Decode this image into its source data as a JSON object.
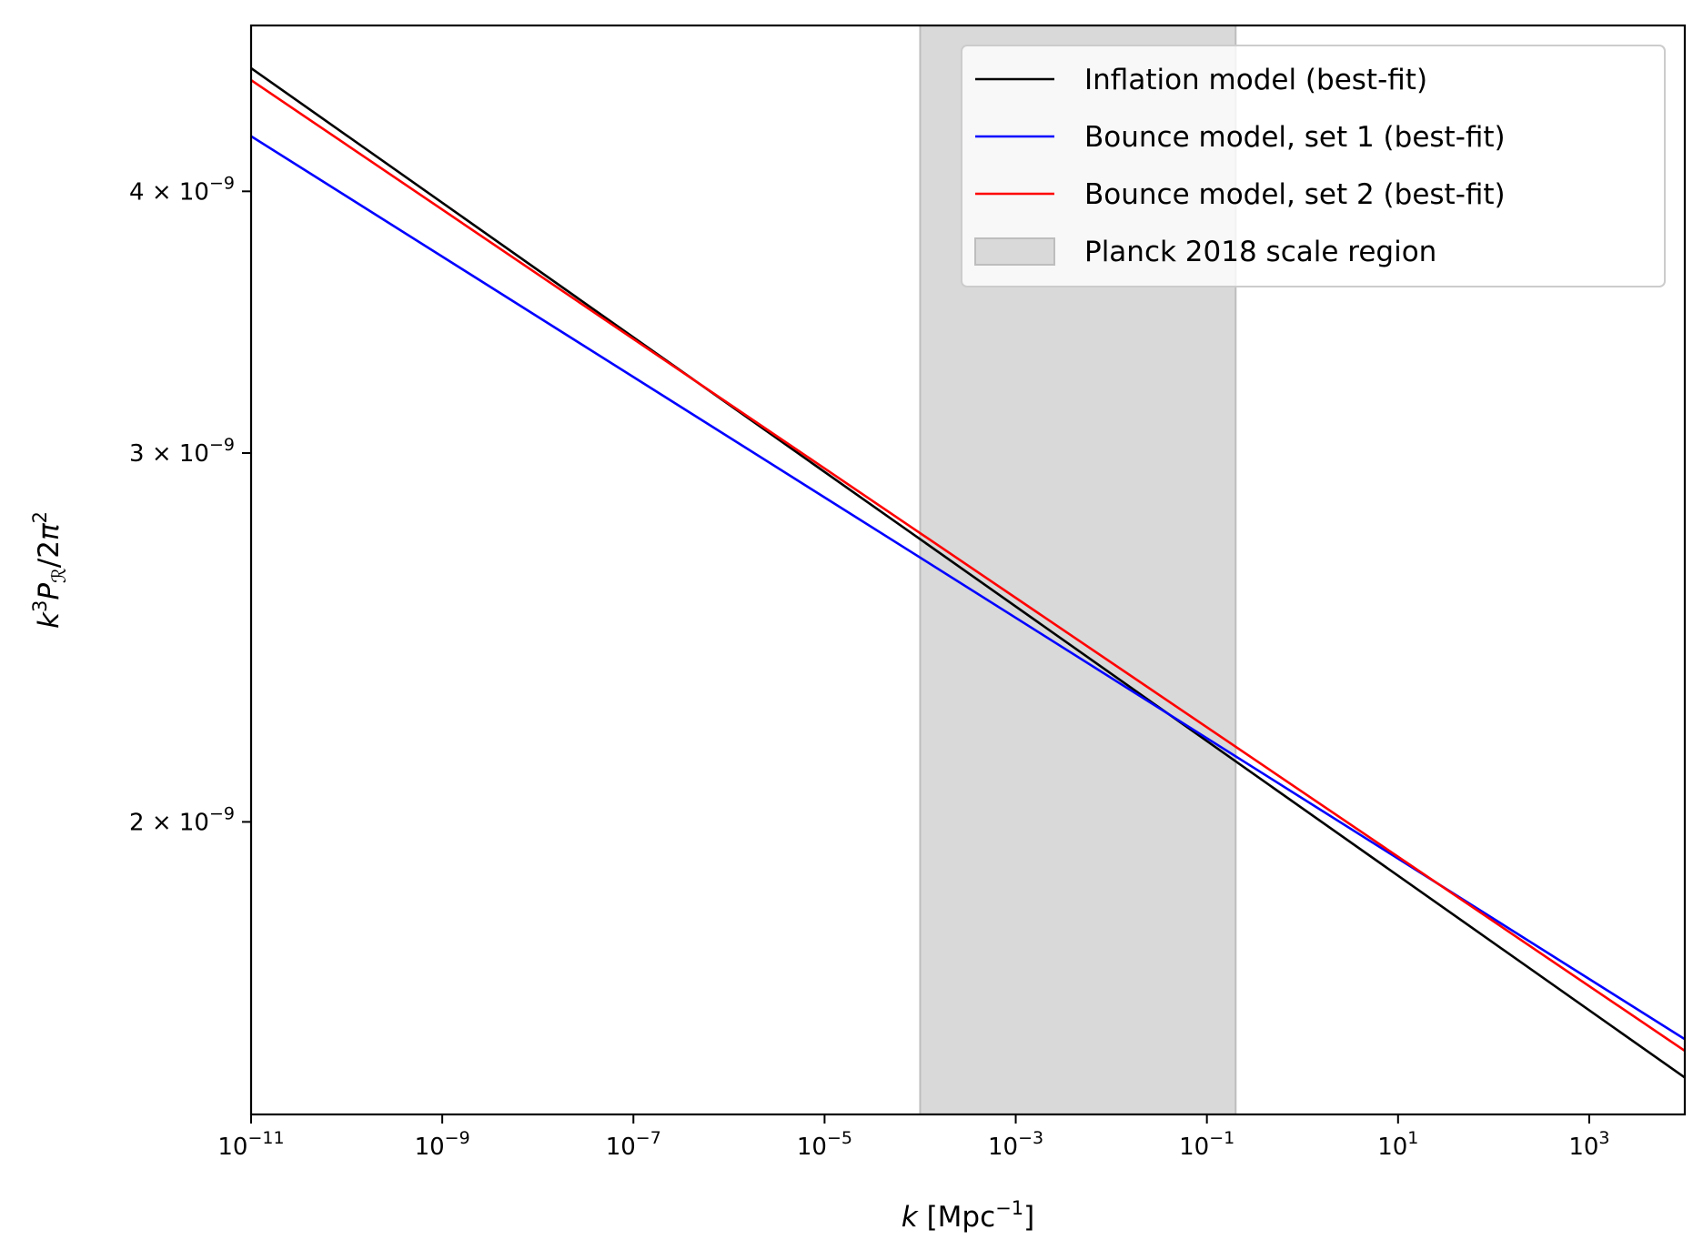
{
  "chart_data": {
    "type": "line",
    "xlabel": "k [Mpc⁻¹]",
    "ylabel": "k³P_R/2π²",
    "x_scale": "log",
    "y_scale": "log",
    "xlim": [
      1e-11,
      10000
    ],
    "ylim": [
      1.45e-09,
      4.8e-09
    ],
    "grid": false,
    "legend_position": "top-right",
    "x_ticks": [
      {
        "value": 1e-11,
        "base": "10",
        "exp": "−11"
      },
      {
        "value": 1e-09,
        "base": "10",
        "exp": "−9"
      },
      {
        "value": 1e-07,
        "base": "10",
        "exp": "−7"
      },
      {
        "value": 1e-05,
        "base": "10",
        "exp": "−5"
      },
      {
        "value": 0.001,
        "base": "10",
        "exp": "−3"
      },
      {
        "value": 0.1,
        "base": "10",
        "exp": "−1"
      },
      {
        "value": 10,
        "base": "10",
        "exp": "1"
      },
      {
        "value": 1000,
        "base": "10",
        "exp": "3"
      }
    ],
    "y_ticks": [
      {
        "value": 4e-09,
        "mant": "4",
        "base": " × 10",
        "exp": "−9"
      },
      {
        "value": 3e-09,
        "mant": "3",
        "base": " × 10",
        "exp": "−9"
      },
      {
        "value": 2e-09,
        "mant": "2",
        "base": " × 10",
        "exp": "−9"
      }
    ],
    "shaded_region": {
      "name": "Planck 2018 scale region",
      "xmin": 0.0001,
      "xmax": 0.2,
      "color": "#d9d9d9"
    },
    "series": [
      {
        "name": "Inflation model (best-fit)",
        "color": "#000000",
        "x": [
          1e-11,
          10000
        ],
        "y": [
          4.58e-09,
          1.51e-09
        ]
      },
      {
        "name": "Bounce model, set 1 (best-fit)",
        "color": "#0000ff",
        "x": [
          1e-11,
          10000
        ],
        "y": [
          4.25e-09,
          1.575e-09
        ]
      },
      {
        "name": "Bounce model, set 2 (best-fit)",
        "color": "#ff0000",
        "x": [
          1e-11,
          10000
        ],
        "y": [
          4.52e-09,
          1.555e-09
        ]
      }
    ]
  }
}
